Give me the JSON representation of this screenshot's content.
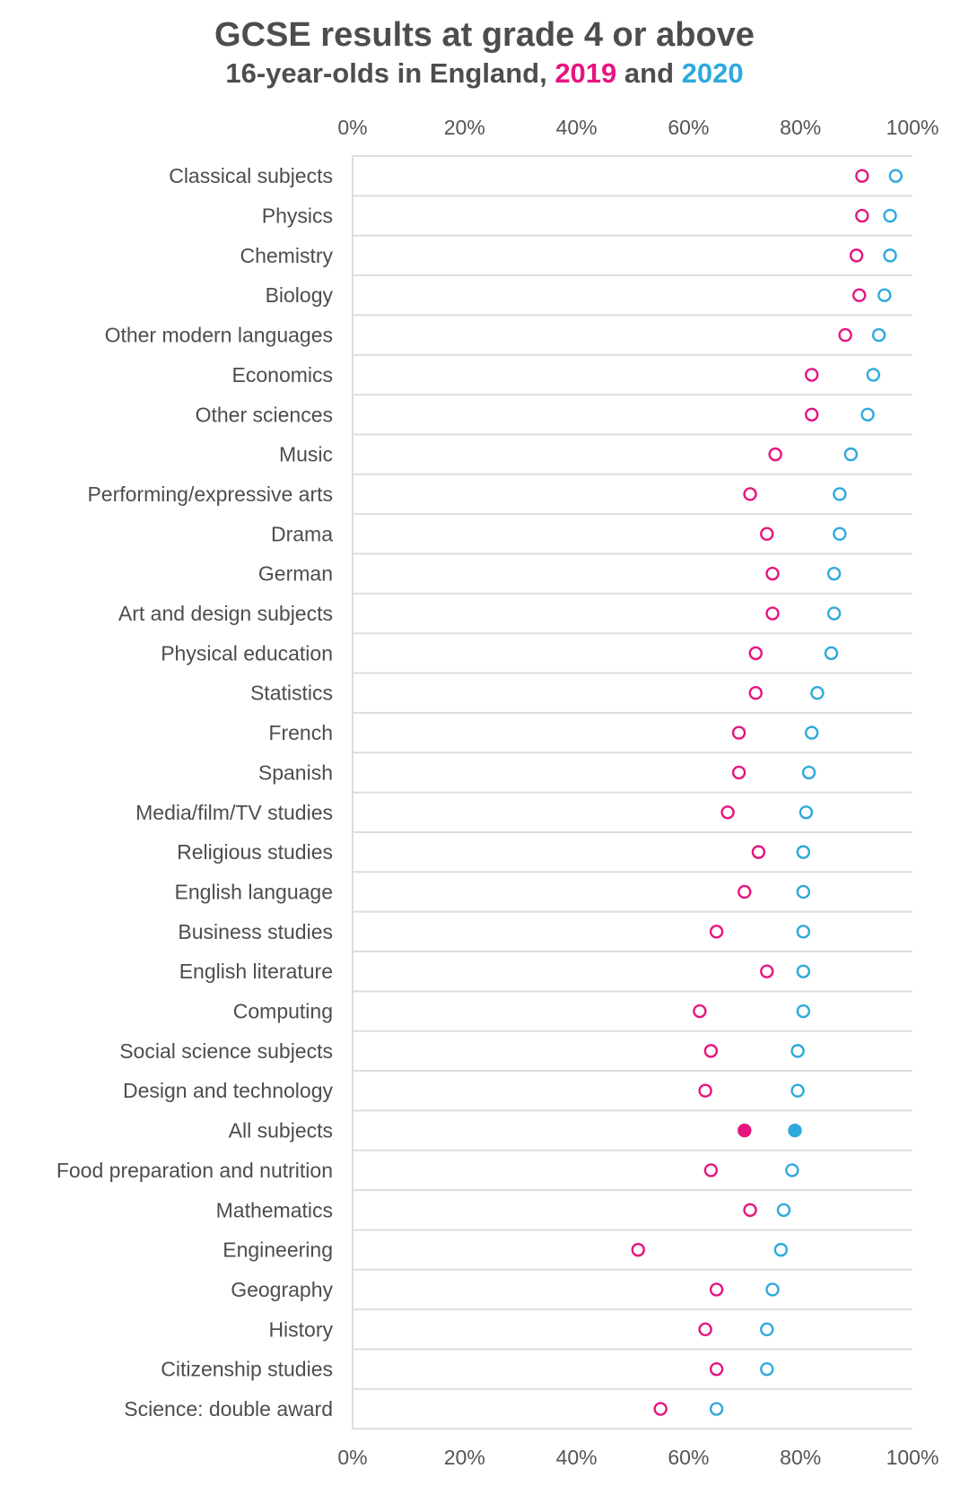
{
  "chart_data": {
    "type": "scatter",
    "title": "GCSE results at grade 4 or above",
    "subtitle": {
      "prefix": "16-year-olds in England,",
      "series1": "2019",
      "joiner": "and",
      "series2": "2020"
    },
    "xlim": [
      0,
      100
    ],
    "ticks": [
      0,
      20,
      40,
      60,
      80,
      100
    ],
    "tick_format": "%",
    "grid": true,
    "colors": {
      "2019": "#e6157f",
      "2020": "#2ea9dc",
      "grid": "#dddddd",
      "text": "#4d4d4d"
    },
    "highlight_category": "All subjects",
    "categories": [
      "Classical subjects",
      "Physics",
      "Chemistry",
      "Biology",
      "Other modern languages",
      "Economics",
      "Other sciences",
      "Music",
      "Performing/expressive arts",
      "Drama",
      "German",
      "Art and design subjects",
      "Physical education",
      "Statistics",
      "French",
      "Spanish",
      "Media/film/TV studies",
      "Religious studies",
      "English language",
      "Business studies",
      "English literature",
      "Computing",
      "Social science subjects",
      "Design and technology",
      "All subjects",
      "Food preparation and nutrition",
      "Mathematics",
      "Engineering",
      "Geography",
      "History",
      "Citizenship studies",
      "Science: double award"
    ],
    "series": [
      {
        "name": "2019",
        "values": [
          91,
          91,
          90,
          90.5,
          88,
          82,
          82,
          75.5,
          71,
          74,
          75,
          75,
          72,
          72,
          69,
          69,
          67,
          72.5,
          70,
          65,
          74,
          62,
          64,
          63,
          70,
          64,
          71,
          51,
          65,
          63,
          65,
          55
        ]
      },
      {
        "name": "2020",
        "values": [
          97,
          96,
          96,
          95,
          94,
          93,
          92,
          89,
          87,
          87,
          86,
          86,
          85.5,
          83,
          82,
          81.5,
          81,
          80.5,
          80.5,
          80.5,
          80.5,
          80.5,
          79.5,
          79.5,
          79,
          78.5,
          77,
          76.5,
          75,
          74,
          74,
          65
        ]
      }
    ]
  }
}
